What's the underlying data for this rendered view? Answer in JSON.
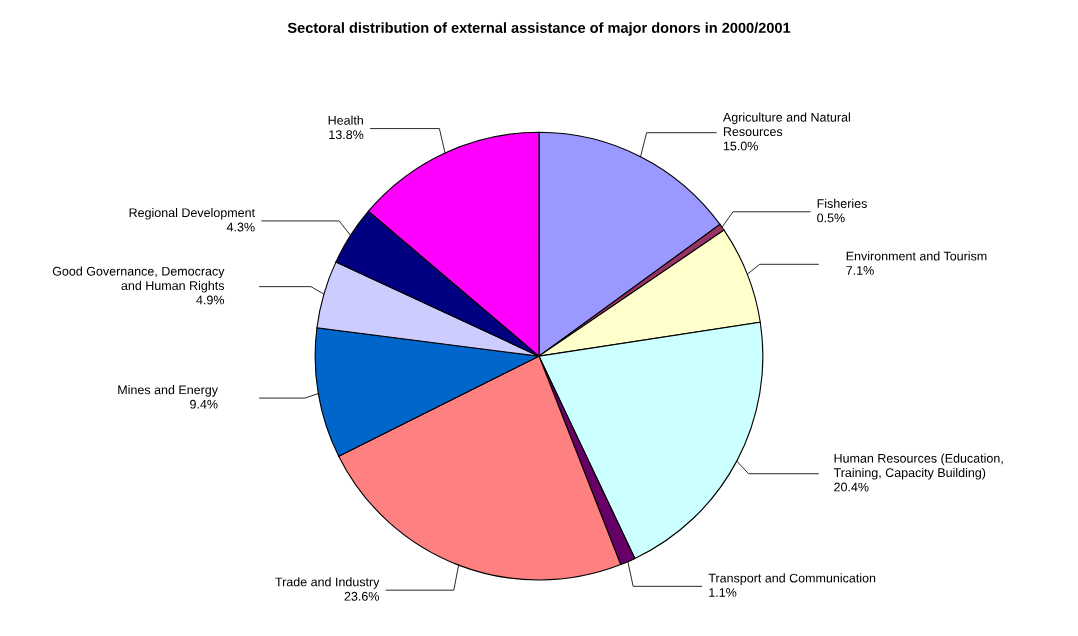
{
  "chart_data": {
    "type": "pie",
    "title": "Sectoral distribution of external assistance of major donors in 2000/2001",
    "categories": [
      "Agriculture and Natural\nResources",
      "Fisheries",
      "Environment and Tourism",
      "Human Resources (Education,\nTraining, Capacity Building)",
      "Transport and Communication",
      "Trade and Industry",
      "Mines and Energy",
      "Good Governance, Democracy\nand Human Rights",
      "Regional Development",
      "Health"
    ],
    "values": [
      15.0,
      0.5,
      7.1,
      20.4,
      1.1,
      23.6,
      9.4,
      4.9,
      4.3,
      13.8
    ],
    "value_labels": [
      "15.0%",
      "0.5%",
      "7.1%",
      "20.4%",
      "1.1%",
      "23.6%",
      "9.4%",
      "4.9%",
      "4.3%",
      "13.8%"
    ],
    "colors": [
      "#9999ff",
      "#993366",
      "#ffffcc",
      "#ccffff",
      "#660066",
      "#ff8080",
      "#0066cc",
      "#ccccff",
      "#000080",
      "#ff00ff"
    ]
  }
}
